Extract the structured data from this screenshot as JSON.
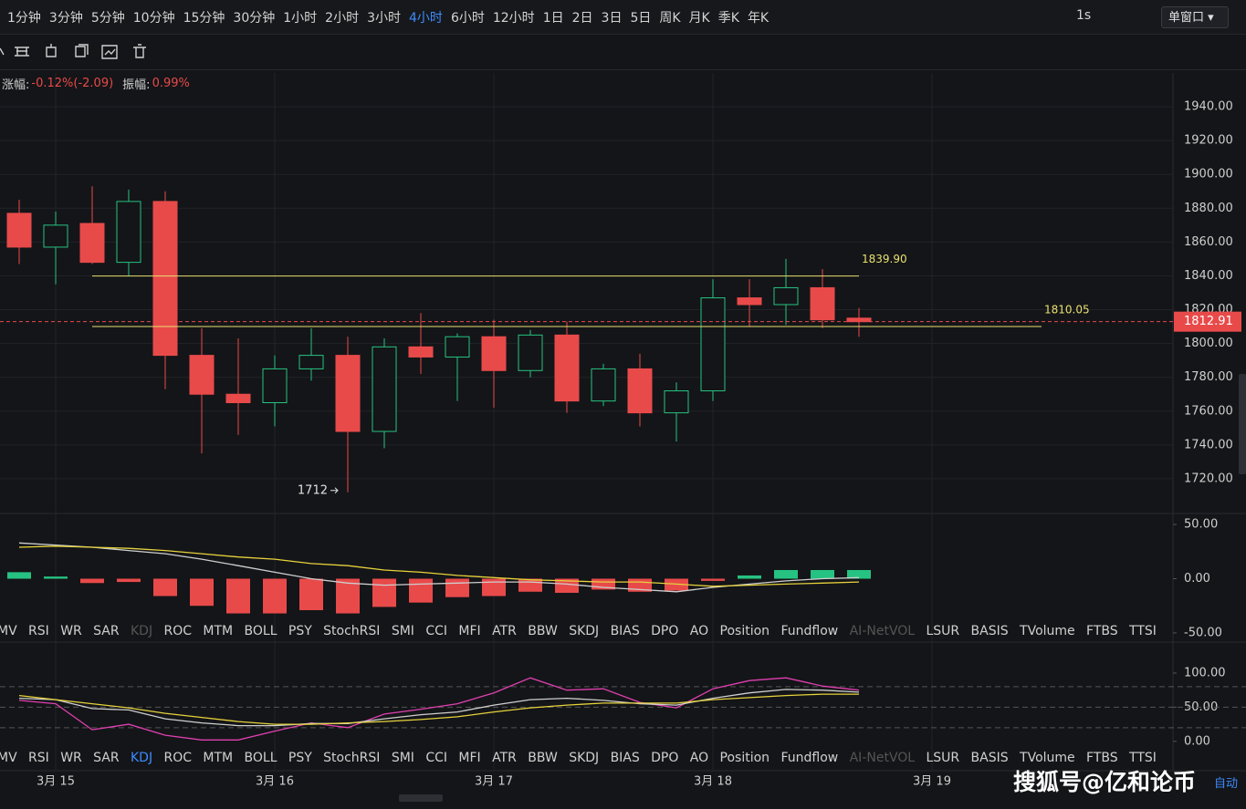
{
  "toolbar": {
    "intervals": [
      "1分钟",
      "3分钟",
      "5分钟",
      "10分钟",
      "15分钟",
      "30分钟",
      "1小时",
      "2小时",
      "3小时",
      "4小时",
      "6小时",
      "12小时",
      "1日",
      "2日",
      "3日",
      "5日",
      "周K",
      "月K",
      "季K",
      "年K"
    ],
    "active_interval": "4小时",
    "refresh": "1s",
    "window": "单窗口"
  },
  "info": {
    "change_label": "涨幅:",
    "change": "-0.12%(-2.09)",
    "amplitude_label": "振幅:",
    "amplitude": "0.99%"
  },
  "footer": {
    "watermark": "搜狐号@亿和论币",
    "auto": "自动"
  },
  "chart_data": [
    {
      "type": "candlestick",
      "x": [
        0,
        1,
        2,
        3,
        4,
        5,
        6,
        7,
        8,
        9,
        10,
        11,
        12,
        13,
        14,
        15,
        16,
        17,
        18,
        19,
        20,
        21,
        22,
        23
      ],
      "open": [
        1877,
        1857,
        1871,
        1848,
        1884,
        1793,
        1770,
        1765,
        1785,
        1793,
        1748,
        1798,
        1792,
        1804,
        1784,
        1805,
        1766,
        1785,
        1759,
        1772,
        1827,
        1823,
        1833,
        1815
      ],
      "high": [
        1885,
        1878,
        1893,
        1891,
        1890,
        1809,
        1803,
        1793,
        1809,
        1804,
        1803,
        1818,
        1806,
        1814,
        1808,
        1813,
        1788,
        1794,
        1777,
        1838,
        1838,
        1850,
        1844,
        1821
      ],
      "low": [
        1847,
        1835,
        1847,
        1840,
        1773,
        1735,
        1746,
        1751,
        1778,
        1712,
        1738,
        1782,
        1766,
        1762,
        1780,
        1759,
        1763,
        1751,
        1742,
        1766,
        1810,
        1811,
        1809,
        1804
      ],
      "close": [
        1857,
        1870,
        1848,
        1884,
        1793,
        1770,
        1765,
        1785,
        1793,
        1748,
        1798,
        1792,
        1804,
        1784,
        1805,
        1766,
        1785,
        1759,
        1772,
        1827,
        1823,
        1833,
        1814,
        1812.91
      ],
      "colors": {
        "up": "#26c281",
        "down": "#e84a4a"
      },
      "xlim": [
        -0.525,
        31.6
      ],
      "xticks": [
        {
          "value": 1,
          "label": "3月 15"
        },
        {
          "value": 7,
          "label": "3月 16"
        },
        {
          "value": 13,
          "label": "3月 17"
        },
        {
          "value": 19,
          "label": "3月 18"
        },
        {
          "value": 25,
          "label": "3月 19"
        }
      ],
      "ylim": [
        1700,
        1960
      ],
      "yticks": [
        {
          "value": 1720,
          "label": "1720.00"
        },
        {
          "value": 1740,
          "label": "1740.00"
        },
        {
          "value": 1760,
          "label": "1760.00"
        },
        {
          "value": 1780,
          "label": "1780.00"
        },
        {
          "value": 1800,
          "label": "1800.00"
        },
        {
          "value": 1820,
          "label": "1820.00"
        },
        {
          "value": 1840,
          "label": "1840.00"
        },
        {
          "value": 1860,
          "label": "1860.00"
        },
        {
          "value": 1880,
          "label": "1880.00"
        },
        {
          "value": 1900,
          "label": "1900.00"
        },
        {
          "value": 1920,
          "label": "1920.00"
        },
        {
          "value": 1940,
          "label": "1940.00"
        }
      ],
      "hlines": [
        {
          "value": 1839.9,
          "label": "1839.90",
          "x": [
            2,
            23
          ]
        },
        {
          "value": 1810.05,
          "label": "1810.05",
          "x": [
            2,
            28
          ]
        }
      ],
      "hline_color": "#e8e070",
      "last_price": {
        "value": 1812.91,
        "label": "1812.91"
      },
      "annotation": {
        "x": 9,
        "value": 1712
      },
      "grid": true
    },
    {
      "type": "macd",
      "values": [
        6,
        2,
        -4,
        -3,
        -16,
        -25,
        -32,
        -32,
        -29,
        -32,
        -26,
        -22,
        -17,
        -16,
        -12,
        -13,
        -10,
        -12,
        -11,
        -2,
        3,
        8,
        8,
        8
      ],
      "series": [
        {
          "color": "#cfcfcf",
          "values": [
            33,
            31,
            29,
            26,
            23,
            18,
            12,
            6,
            0,
            -4,
            -6,
            -5,
            -4,
            -3,
            -3,
            -5,
            -8,
            -10,
            -12,
            -8,
            -5,
            -2,
            0,
            1
          ]
        },
        {
          "color": "#e6d23c",
          "values": [
            29,
            30,
            29,
            28,
            26,
            23,
            20,
            18,
            14,
            12,
            8,
            6,
            3,
            1,
            -1,
            -2,
            -3,
            -3,
            -5,
            -7,
            -6,
            -5,
            -4,
            -3
          ]
        }
      ],
      "ylim": [
        -57.6,
        57.6
      ],
      "yticks": [
        {
          "value": -50,
          "label": "-50.00"
        },
        {
          "value": 0,
          "label": "0.00"
        },
        {
          "value": 50,
          "label": "50.00"
        }
      ],
      "tabs": [
        "MV",
        "RSI",
        "WR",
        "SAR",
        "KDJ",
        "ROC",
        "MTM",
        "BOLL",
        "PSY",
        "StochRSI",
        "SMI",
        "CCI",
        "MFI",
        "ATR",
        "BBW",
        "SKDJ",
        "BIAS",
        "DPO",
        "AO",
        "Position",
        "Fundflow",
        "AI-NetVOL",
        "LSUR",
        "BASIS",
        "TVolume",
        "FTBS",
        "TTSI"
      ],
      "disabled_tabs": [
        "KDJ",
        "AI-NetVOL"
      ]
    },
    {
      "type": "line",
      "series": [
        {
          "color": "#e040b0",
          "values": [
            60,
            55,
            17,
            25,
            9,
            2,
            2,
            15,
            27,
            20,
            40,
            47,
            55,
            71,
            93,
            75,
            77,
            57,
            49,
            77,
            89,
            93,
            81,
            75
          ]
        },
        {
          "color": "#cfcfcf",
          "values": [
            63,
            61,
            48,
            46,
            33,
            27,
            23,
            23,
            26,
            26,
            33,
            39,
            43,
            53,
            61,
            63,
            60,
            55,
            53,
            63,
            71,
            76,
            75,
            72
          ]
        },
        {
          "color": "#e6d23c",
          "values": [
            67,
            61,
            55,
            49,
            41,
            35,
            29,
            25,
            25,
            27,
            29,
            32,
            36,
            43,
            49,
            53,
            56,
            56,
            56,
            61,
            64,
            67,
            69,
            69
          ]
        }
      ],
      "ylim": [
        -43,
        144
      ],
      "yticks": [
        {
          "value": 0,
          "label": "0.00"
        },
        {
          "value": 50,
          "label": "50.00"
        },
        {
          "value": 100,
          "label": "100.00"
        }
      ],
      "reference_lines": [
        20,
        50,
        80
      ],
      "tabs": [
        "MV",
        "RSI",
        "WR",
        "SAR",
        "KDJ",
        "ROC",
        "MTM",
        "BOLL",
        "PSY",
        "StochRSI",
        "SMI",
        "CCI",
        "MFI",
        "ATR",
        "BBW",
        "SKDJ",
        "BIAS",
        "DPO",
        "AO",
        "Position",
        "Fundflow",
        "AI-NetVOL",
        "LSUR",
        "BASIS",
        "TVolume",
        "FTBS",
        "TTSI"
      ],
      "disabled_tabs": [
        "AI-NetVOL"
      ],
      "active_tab": "KDJ"
    }
  ]
}
